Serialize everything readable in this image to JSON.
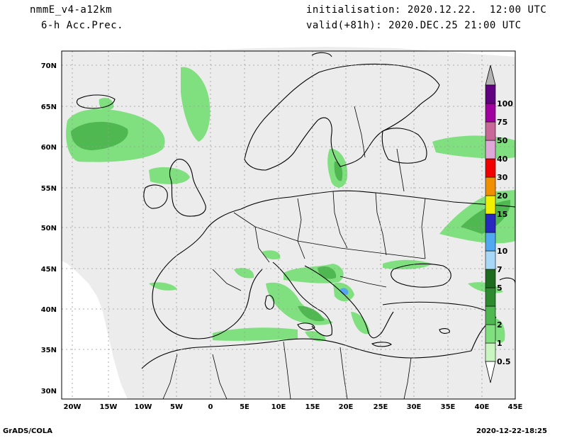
{
  "header": {
    "model": "nmmE_v4-a12km",
    "product": "6-h Acc.Prec.",
    "init": "initialisation: 2020.12.22.  12:00 UTC",
    "valid": "valid(+81h): 2020.DEC.25 21:00 UTC"
  },
  "map": {
    "lat_labels": [
      "70N",
      "65N",
      "60N",
      "55N",
      "50N",
      "45N",
      "40N",
      "35N",
      "30N"
    ],
    "lon_labels": [
      "20W",
      "15W",
      "10W",
      "5W",
      "0",
      "5E",
      "10E",
      "15E",
      "20E",
      "25E",
      "30E",
      "35E",
      "40E",
      "45E"
    ]
  },
  "colorbar": {
    "levels": [
      {
        "label": "0.5",
        "color": "#c8f5c0"
      },
      {
        "label": "1",
        "color": "#80e080"
      },
      {
        "label": "2",
        "color": "#50b850"
      },
      {
        "label": "",
        "color": "#2e8a2e"
      },
      {
        "label": "5",
        "color": "#1d6b1d"
      },
      {
        "label": "7",
        "color": "#a8d8f8"
      },
      {
        "label": "10",
        "color": "#50a8f0"
      },
      {
        "label": "",
        "color": "#2828c0"
      },
      {
        "label": "15",
        "color": "#f0f000"
      },
      {
        "label": "20",
        "color": "#f09000"
      },
      {
        "label": "30",
        "color": "#f00000"
      },
      {
        "label": "40",
        "color": "#e0a8d8"
      },
      {
        "label": "50",
        "color": "#c86898"
      },
      {
        "label": "75",
        "color": "#a000a0"
      },
      {
        "label": "100",
        "color": "#600080"
      }
    ],
    "top_color": "#b4b4b4"
  },
  "footer": {
    "left": "GrADS/COLA",
    "right": "2020-12-22-18:25"
  }
}
